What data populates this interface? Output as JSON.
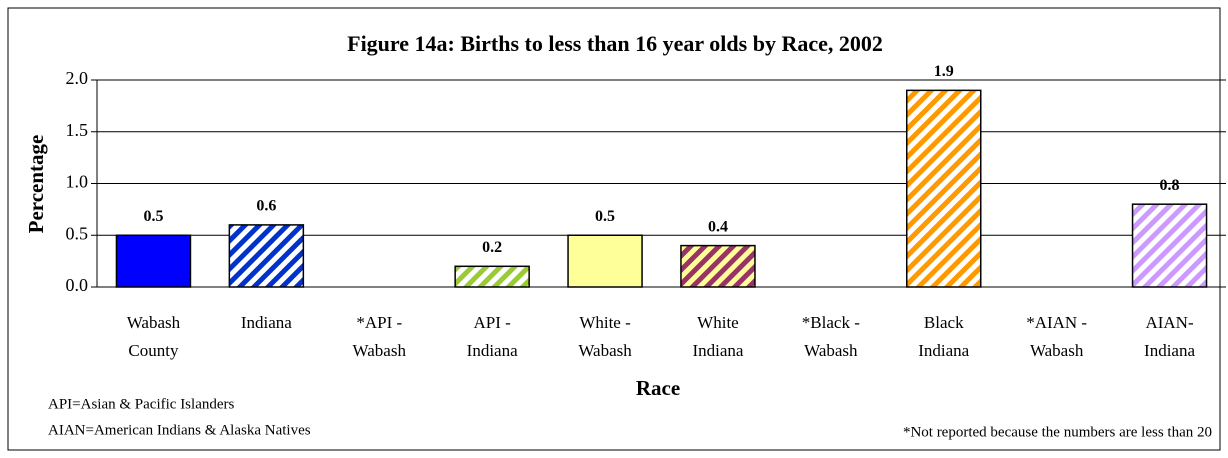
{
  "chart_data": {
    "type": "bar",
    "title": "Figure 14a:  Births to less than 16 year olds by Race, 2002",
    "x_label": "Race",
    "y_label": "Percentage",
    "categories": [
      [
        "Wabash",
        "County"
      ],
      [
        "Indiana"
      ],
      [
        "*API -",
        "Wabash"
      ],
      [
        "API  -",
        "Indiana"
      ],
      [
        "White -",
        "Wabash"
      ],
      [
        "White",
        "Indiana"
      ],
      [
        "*Black -",
        "Wabash"
      ],
      [
        "Black",
        "Indiana"
      ],
      [
        "*AIAN -",
        "Wabash"
      ],
      [
        "AIAN-",
        "Indiana"
      ]
    ],
    "values": [
      0.5,
      0.6,
      null,
      0.2,
      0.5,
      0.4,
      null,
      1.9,
      null,
      0.8
    ],
    "colors": [
      "#0000ff",
      "#0033cc",
      null,
      "#99cc33",
      "#ffff99",
      "#993366",
      null,
      "#ff9900",
      null,
      "#cc99ff"
    ],
    "patterns": [
      "solid",
      "hatch",
      null,
      "hatch",
      "solid",
      "hatch",
      null,
      "hatch",
      null,
      "hatch"
    ],
    "background_colors": [
      null,
      "#ffffff",
      null,
      "#ffffff",
      null,
      "#ffff99",
      null,
      "#ffffff",
      null,
      "#ffffff"
    ],
    "ylim": [
      0,
      2
    ],
    "yticks": [
      {
        "value": 0,
        "label": "0.0"
      },
      0.5,
      {
        "value": 1,
        "label": "1.0"
      },
      1.5,
      {
        "value": 2,
        "label": "2.0"
      }
    ],
    "grid": true,
    "notes": [
      "API=Asian & Pacific Islanders",
      "AIAN=American Indians & Alaska Natives",
      "*Not reported because the numbers are less than 20"
    ]
  }
}
